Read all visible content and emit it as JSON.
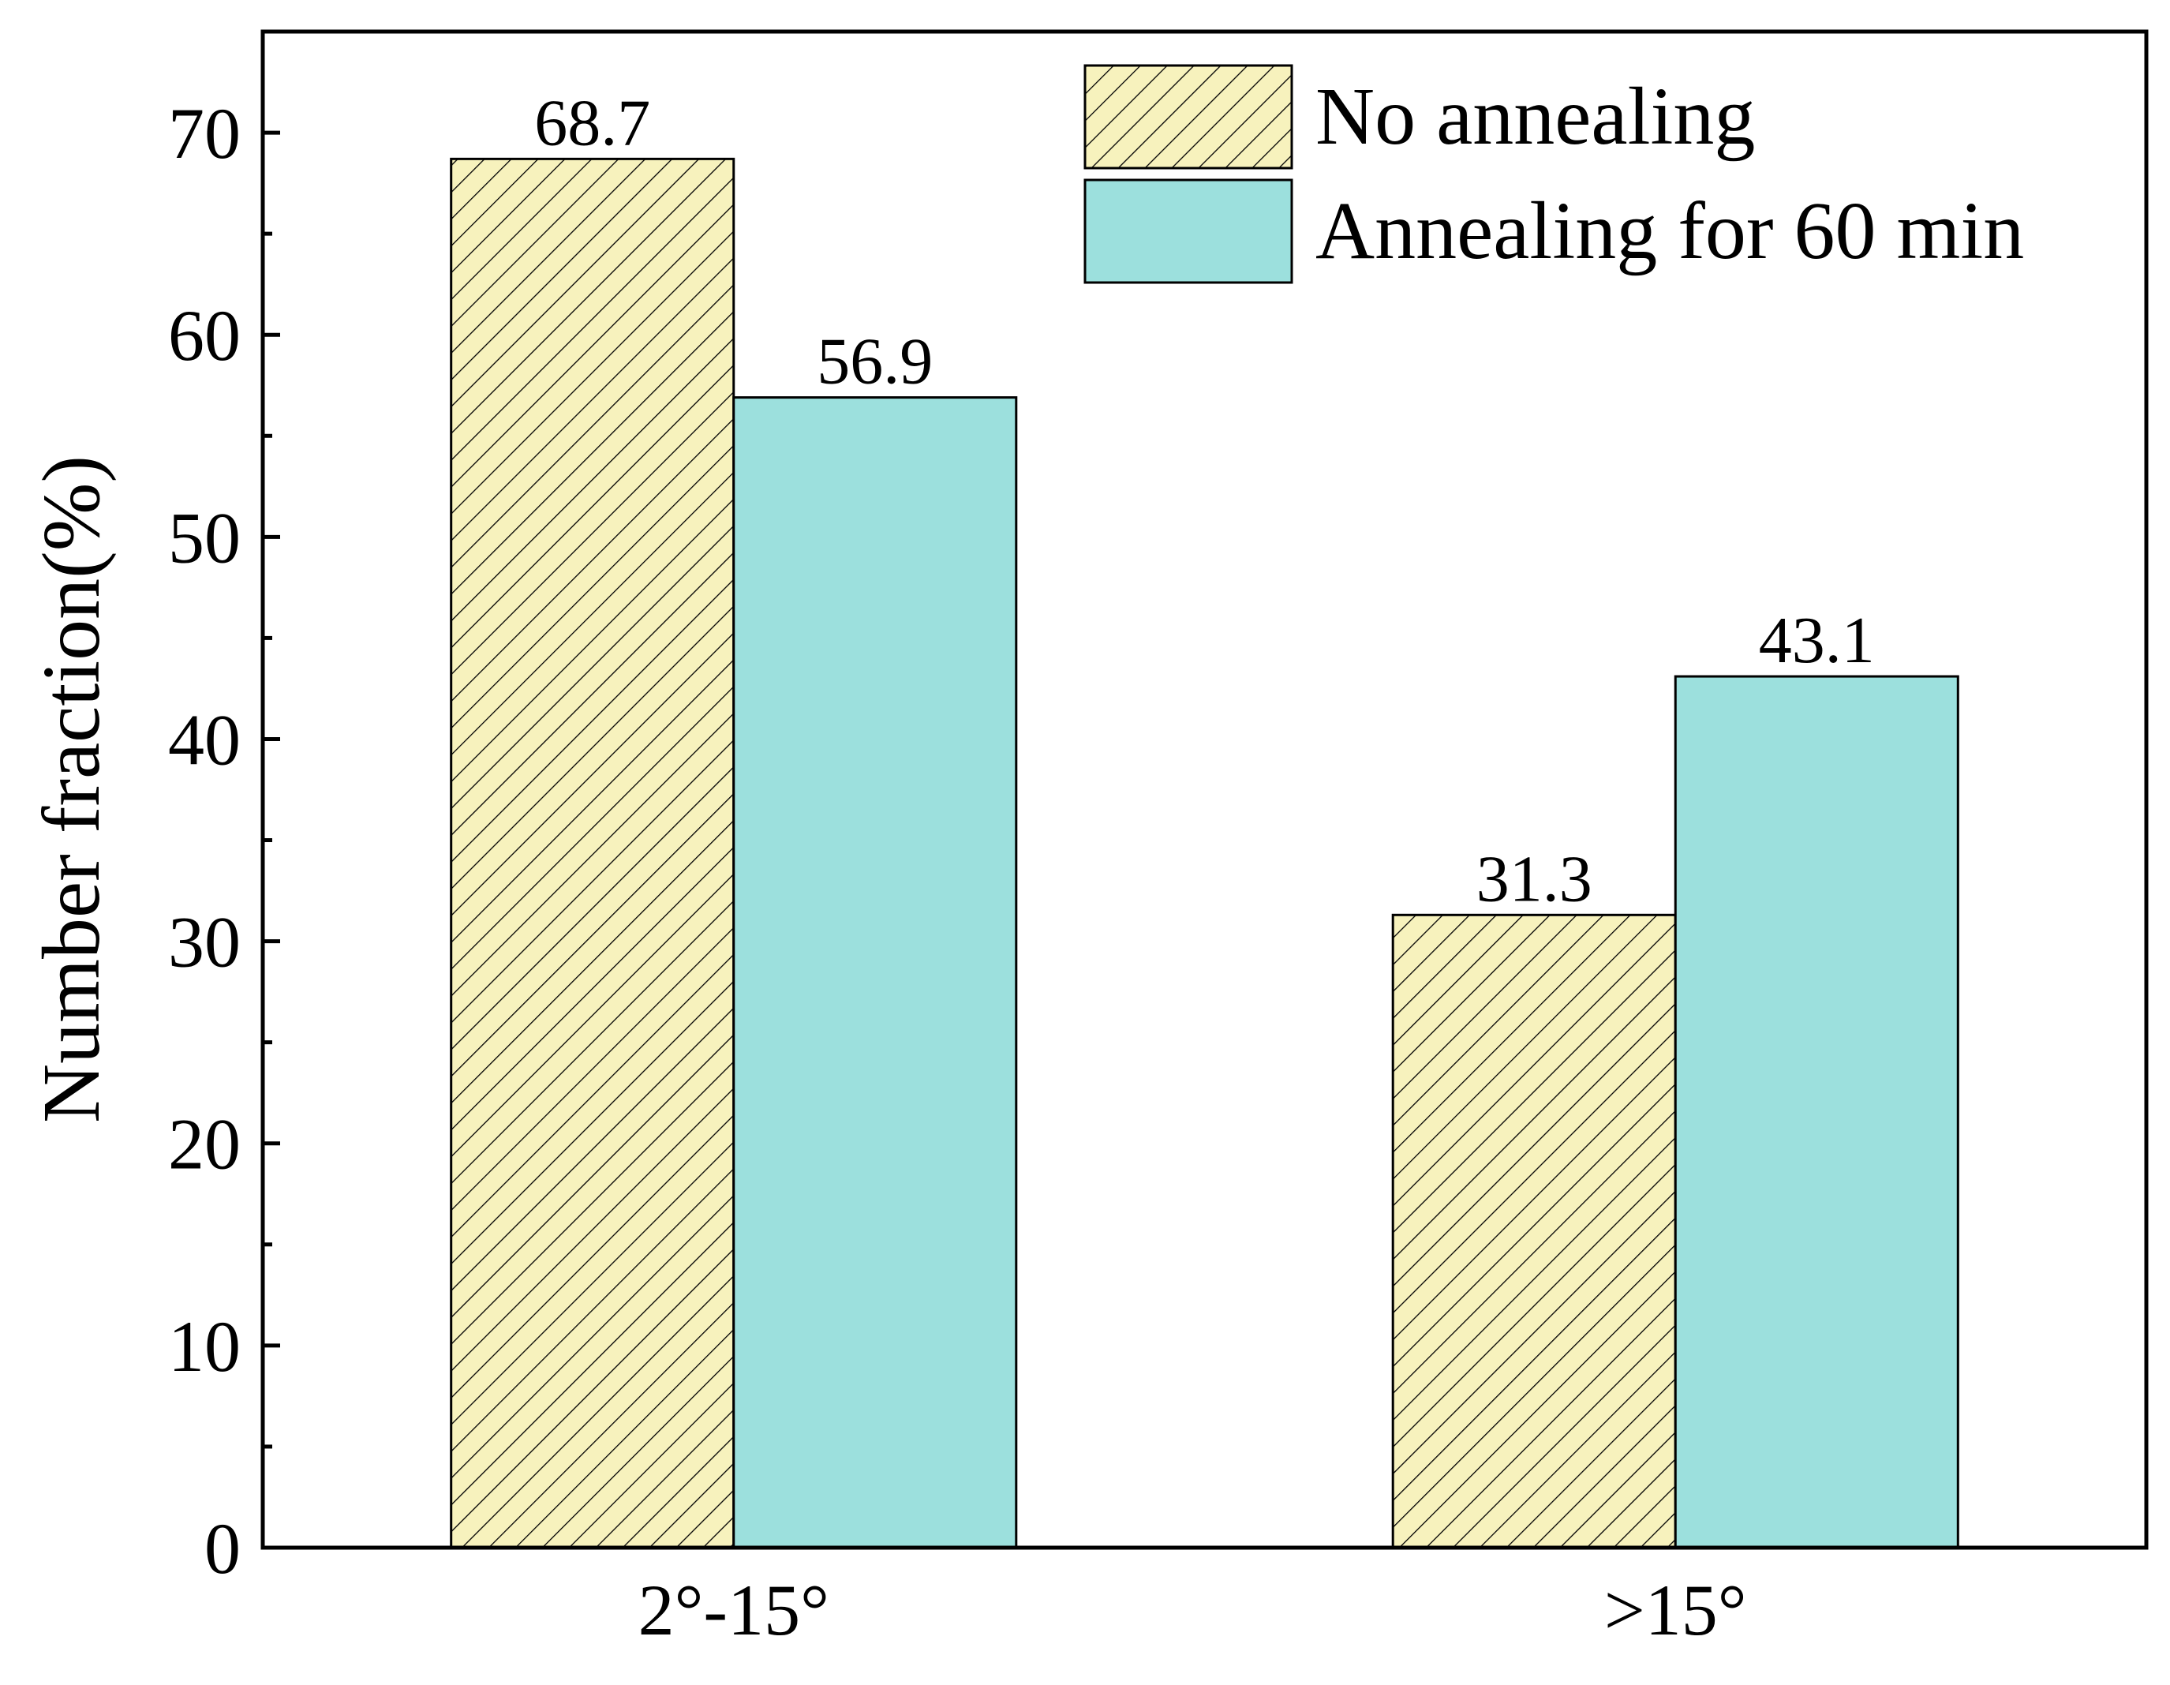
{
  "chart_data": {
    "type": "bar",
    "title": "",
    "xlabel": "",
    "ylabel": "Number fraction(%)",
    "categories": [
      "2°-15°",
      ">15°"
    ],
    "series": [
      {
        "name": "No annealing",
        "values": [
          68.7,
          31.3
        ],
        "labels": [
          "68.7",
          "31.3"
        ],
        "color": "#f7f2bd",
        "pattern": "hatch"
      },
      {
        "name": "Annealing for 60 min",
        "values": [
          56.9,
          43.1
        ],
        "labels": [
          "56.9",
          "43.1"
        ],
        "color": "#9ce0dd",
        "pattern": "solid"
      }
    ],
    "ylim": [
      0,
      75
    ],
    "yticks": [
      0,
      10,
      20,
      30,
      40,
      50,
      60,
      70
    ],
    "ytick_labels": [
      "0",
      "10",
      "20",
      "30",
      "40",
      "50",
      "60",
      "70"
    ],
    "grid": false,
    "legend_position": "top-right"
  }
}
